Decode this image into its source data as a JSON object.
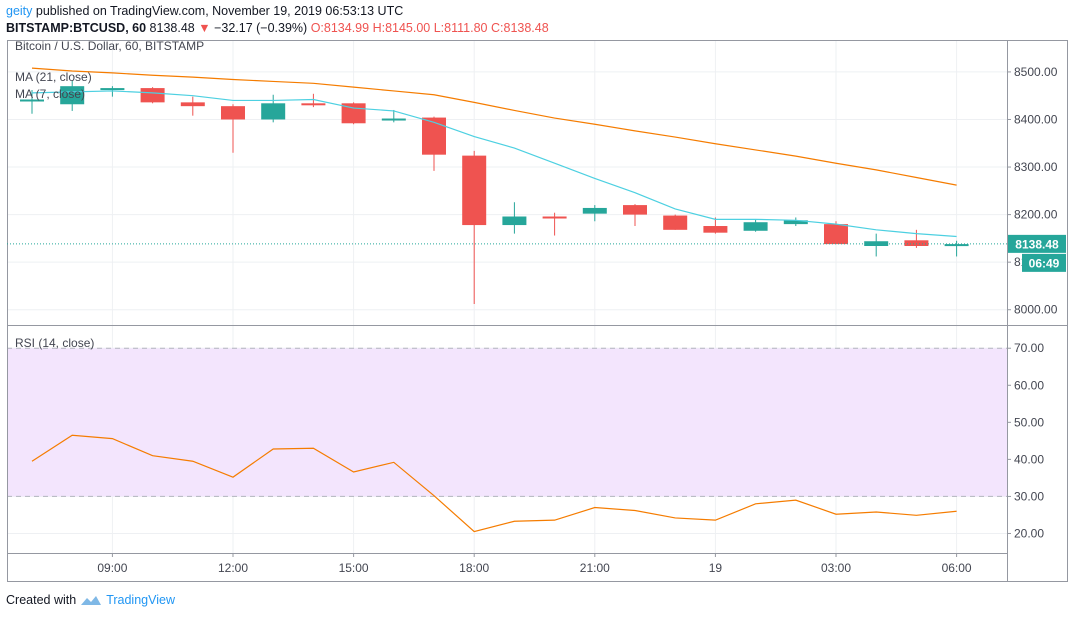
{
  "header": {
    "user": "geity",
    "published_text": " published on TradingView.com, November 19, 2019 06:53:13 UTC",
    "symbol": "BITSTAMP:BTCUSD, 60",
    "last": "8138.48",
    "change": "−32.17 (−0.39%)",
    "o_label": "O:",
    "o_value": "8134.99",
    "h_label": "H:",
    "h_value": "8145.00",
    "l_label": "L:",
    "l_value": "8111.80",
    "c_label": "C:",
    "c_value": "8138.48"
  },
  "footer": {
    "created_with": "Created with",
    "brand": "TradingView"
  },
  "colors": {
    "up": "#26a69a",
    "down": "#ef5350",
    "ma21": "#f57c00",
    "ma7": "#4dd0e1",
    "rsi": "#f57c00",
    "rsi_band": "#f3e5fd"
  },
  "chart_data": [
    {
      "type": "candlestick",
      "title": "Bitcoin / U.S. Dollar, 60, BITSTAMP",
      "indicators": [
        "MA (21, close)",
        "MA (7, close)"
      ],
      "x_ticks": [
        {
          "i": 2,
          "label": "09:00"
        },
        {
          "i": 5,
          "label": "12:00"
        },
        {
          "i": 8,
          "label": "15:00"
        },
        {
          "i": 11,
          "label": "18:00"
        },
        {
          "i": 14,
          "label": "21:00"
        },
        {
          "i": 17,
          "label": "19"
        },
        {
          "i": 20,
          "label": "03:00"
        },
        {
          "i": 23,
          "label": "06:00"
        }
      ],
      "y_ticks": [
        8000,
        8100,
        8200,
        8300,
        8400,
        8500
      ],
      "y_tick_labels": [
        "8000.00",
        "8100.00",
        "8200.00",
        "8300.00",
        "8400.00",
        "8500.00"
      ],
      "ylim": [
        7970,
        8565
      ],
      "last_price": 8138.48,
      "last_price_label": "8138.48",
      "countdown_label": "06:49",
      "candles": [
        {
          "o": 8440,
          "h": 8462,
          "l": 8412,
          "c": 8442
        },
        {
          "o": 8432,
          "h": 8482,
          "l": 8418,
          "c": 8470
        },
        {
          "o": 8462,
          "h": 8470,
          "l": 8448,
          "c": 8466
        },
        {
          "o": 8466,
          "h": 8468,
          "l": 8434,
          "c": 8436
        },
        {
          "o": 8436,
          "h": 8448,
          "l": 8408,
          "c": 8428
        },
        {
          "o": 8428,
          "h": 8432,
          "l": 8330,
          "c": 8400
        },
        {
          "o": 8400,
          "h": 8452,
          "l": 8394,
          "c": 8434
        },
        {
          "o": 8434,
          "h": 8454,
          "l": 8426,
          "c": 8432
        },
        {
          "o": 8434,
          "h": 8436,
          "l": 8390,
          "c": 8392
        },
        {
          "o": 8402,
          "h": 8420,
          "l": 8394,
          "c": 8402
        },
        {
          "o": 8404,
          "h": 8406,
          "l": 8292,
          "c": 8326
        },
        {
          "o": 8324,
          "h": 8334,
          "l": 8012,
          "c": 8178
        },
        {
          "o": 8178,
          "h": 8226,
          "l": 8160,
          "c": 8196
        },
        {
          "o": 8196,
          "h": 8204,
          "l": 8156,
          "c": 8194
        },
        {
          "o": 8202,
          "h": 8220,
          "l": 8186,
          "c": 8214
        },
        {
          "o": 8220,
          "h": 8222,
          "l": 8176,
          "c": 8200
        },
        {
          "o": 8198,
          "h": 8200,
          "l": 8168,
          "c": 8168
        },
        {
          "o": 8176,
          "h": 8194,
          "l": 8160,
          "c": 8162
        },
        {
          "o": 8166,
          "h": 8190,
          "l": 8164,
          "c": 8184
        },
        {
          "o": 8180,
          "h": 8194,
          "l": 8176,
          "c": 8188
        },
        {
          "o": 8180,
          "h": 8186,
          "l": 8138,
          "c": 8138
        },
        {
          "o": 8134,
          "h": 8160,
          "l": 8112,
          "c": 8144
        },
        {
          "o": 8146,
          "h": 8168,
          "l": 8130,
          "c": 8134
        },
        {
          "o": 8135,
          "h": 8145,
          "l": 8112,
          "c": 8138
        }
      ],
      "series": [
        {
          "name": "MA (21, close)",
          "values": [
            8508,
            8502,
            8498,
            8493,
            8489,
            8484,
            8480,
            8476,
            8468,
            8460,
            8452,
            8436,
            8419,
            8403,
            8390,
            8376,
            8363,
            8349,
            8336,
            8323,
            8308,
            8294,
            8278,
            8262
          ]
        },
        {
          "name": "MA (7, close)",
          "values": [
            8456,
            8458,
            8460,
            8456,
            8450,
            8440,
            8440,
            8442,
            8424,
            8418,
            8394,
            8364,
            8340,
            8308,
            8276,
            8246,
            8212,
            8190,
            8190,
            8188,
            8180,
            8168,
            8160,
            8154
          ]
        }
      ]
    },
    {
      "type": "line",
      "title": "RSI (14, close)",
      "ylim": [
        15,
        76
      ],
      "y_ticks": [
        20,
        30,
        40,
        50,
        60,
        70
      ],
      "y_tick_labels": [
        "20.00",
        "30.00",
        "40.00",
        "50.00",
        "60.00",
        "70.00"
      ],
      "band": [
        30,
        70
      ],
      "series": [
        {
          "name": "RSI (14, close)",
          "values": [
            39.5,
            46.5,
            45.6,
            41,
            39.5,
            35.2,
            42.8,
            43,
            36.6,
            39.2,
            30.2,
            20.5,
            23.3,
            23.6,
            27,
            26.2,
            24.2,
            23.6,
            28,
            29,
            25.2,
            25.8,
            24.9,
            26
          ]
        }
      ]
    }
  ]
}
